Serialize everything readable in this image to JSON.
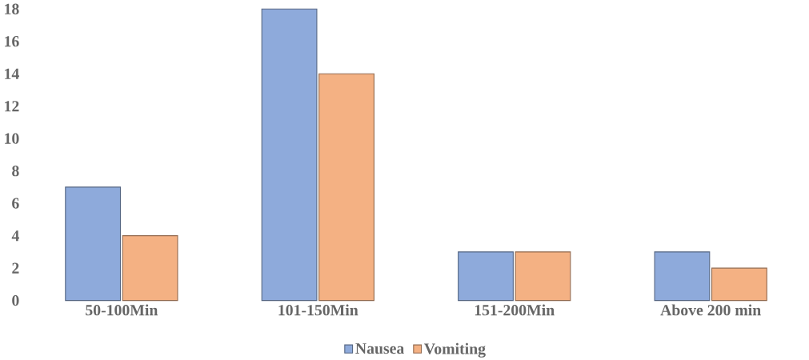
{
  "chart_data": {
    "type": "bar",
    "categories": [
      "50-100Min",
      "101-150Min",
      "151-200Min",
      "Above 200 min"
    ],
    "series": [
      {
        "name": "Nausea",
        "color": "#8eaadb",
        "values": [
          7,
          18,
          3,
          3
        ]
      },
      {
        "name": "Vomiting",
        "color": "#f4b183",
        "values": [
          4,
          14,
          3,
          2
        ]
      }
    ],
    "ylim": [
      0,
      18
    ],
    "yticks": [
      0,
      2,
      4,
      6,
      8,
      10,
      12,
      14,
      16,
      18
    ],
    "grid": false,
    "legend": "bottom"
  }
}
